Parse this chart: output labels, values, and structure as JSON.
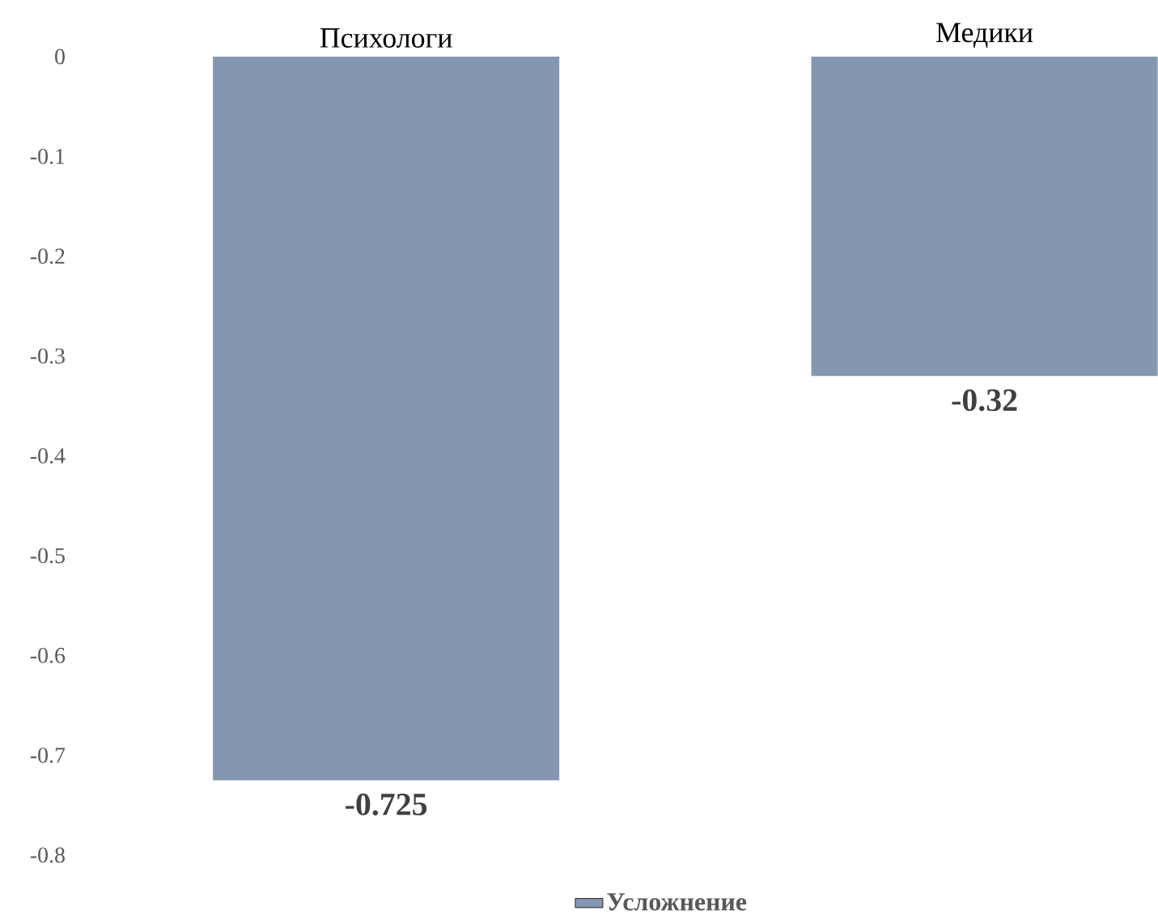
{
  "chart_data": {
    "type": "bar",
    "categories": [
      "Психологи",
      "Медики"
    ],
    "series": [
      {
        "name": "Усложнение",
        "color": "#8497b0",
        "values": [
          -0.725,
          -0.32
        ]
      }
    ],
    "ylim": [
      -0.8,
      0
    ],
    "yticks": [
      0,
      -0.1,
      -0.2,
      -0.3,
      -0.4,
      -0.5,
      -0.6,
      -0.7,
      -0.8
    ],
    "data_labels": true,
    "legend": "bottom",
    "grid": false
  }
}
